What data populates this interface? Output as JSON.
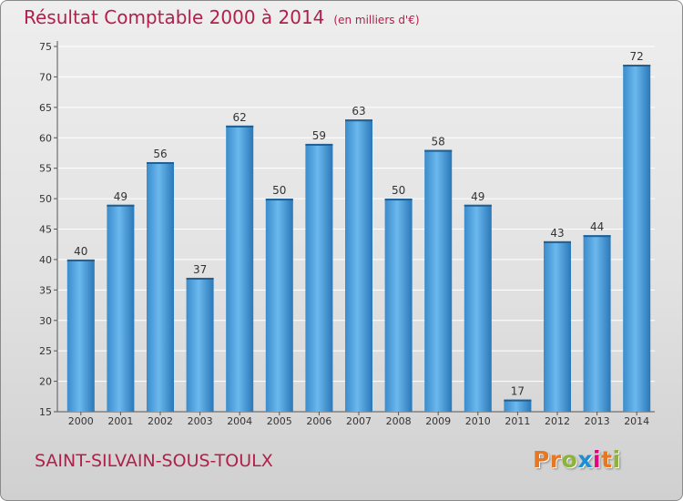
{
  "header": {
    "title": "Résultat Comptable 2000 à 2014",
    "subtitle": "(en milliers d'€)"
  },
  "footer": {
    "commune": "SAINT-SILVAIN-SOUS-TOULX",
    "logo_text": "Proxiti"
  },
  "colors": {
    "title": "#b0204a",
    "bar_light": "#63b1ea",
    "bar_dark": "#2a78b8",
    "grid": "#ffffff",
    "logo_letters": [
      "#e87722",
      "#e87722",
      "#8cb43c",
      "#1a8fd6",
      "#e5007e",
      "#e87722",
      "#8cb43c"
    ]
  },
  "chart_data": {
    "type": "bar",
    "title": "Résultat Comptable 2000 à 2014",
    "subtitle": "(en milliers d'€)",
    "categories": [
      "2000",
      "2001",
      "2002",
      "2003",
      "2004",
      "2005",
      "2006",
      "2007",
      "2008",
      "2009",
      "2010",
      "2011",
      "2012",
      "2013",
      "2014"
    ],
    "values": [
      40,
      49,
      56,
      37,
      62,
      50,
      59,
      63,
      50,
      58,
      49,
      17,
      43,
      44,
      72
    ],
    "value_labels": [
      "40",
      "49",
      "56",
      "37",
      "62",
      "50",
      "59",
      "63",
      "50",
      "58",
      "49",
      "17",
      "43",
      "44",
      "72"
    ],
    "ylim": [
      15,
      75
    ],
    "yticks": [
      15,
      20,
      25,
      30,
      35,
      40,
      45,
      50,
      55,
      60,
      65,
      70,
      75
    ],
    "ytick_labels": [
      "15",
      "20",
      "25",
      "30",
      "35",
      "40",
      "45",
      "50",
      "55",
      "60",
      "65",
      "70",
      "75"
    ],
    "grid": true,
    "legend": "none"
  }
}
